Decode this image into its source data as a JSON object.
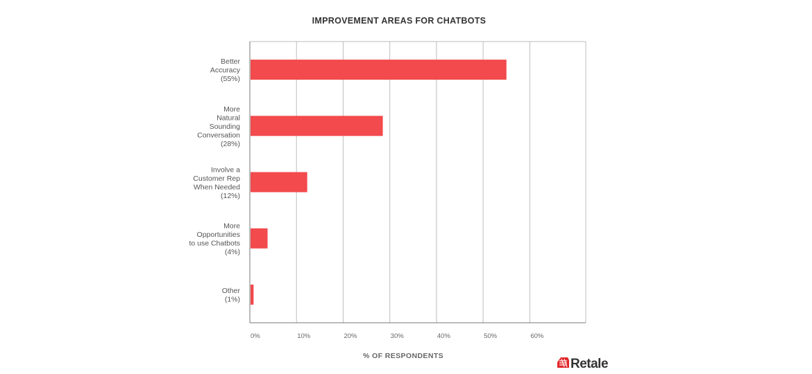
{
  "chart_data": {
    "type": "bar",
    "orientation": "horizontal",
    "title": "IMPROVEMENT AREAS FOR CHATBOTS",
    "xlabel": "% OF RESPONDENTS",
    "ylabel": "",
    "categories": [
      [
        "Better",
        "Accuracy",
        "(55%)"
      ],
      [
        "More",
        "Natural",
        "Sounding",
        "Conversation",
        "(28%)"
      ],
      [
        "Involve a",
        "Customer Rep",
        "When Needed",
        "(12%)"
      ],
      [
        "More",
        "Opportunities",
        "to use Chatbots",
        "(4%)"
      ],
      [
        "Other",
        "(1%)"
      ]
    ],
    "values": [
      55,
      28.5,
      12.3,
      3.8,
      0.8
    ],
    "xlim": [
      0,
      72
    ],
    "xticks": [
      0,
      10,
      20,
      30,
      40,
      50,
      60
    ],
    "xtick_labels": [
      "0%",
      "10%",
      "20%",
      "30%",
      "40%",
      "50%",
      "60%"
    ],
    "grid": "vertical",
    "colors": {
      "bar": "#f24a4d",
      "grid": "#bdbdbd",
      "axis": "#777777"
    }
  },
  "brand": {
    "name": "Retale",
    "color": "#e2262b",
    "icon": "basket-icon"
  }
}
